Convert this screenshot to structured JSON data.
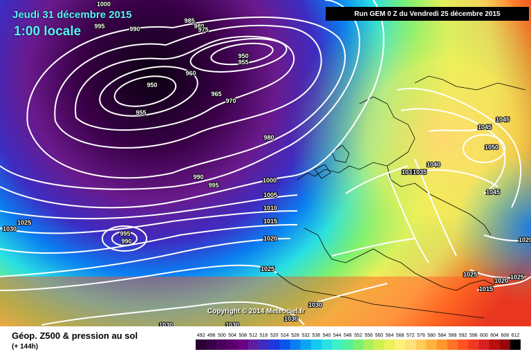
{
  "overlay": {
    "date": "Jeudi 31 décembre 2015",
    "time": "1:00 locale",
    "run": "Run GEM 0 Z du Vendredi 25 décembre 2015",
    "copyright": "Copyright © 2014 Meteociel.fr"
  },
  "footer": {
    "title": "Géop. Z500 & pression au sol",
    "subtitle": "(+ 144h)"
  },
  "legend": {
    "values": [
      "492",
      "496",
      "500",
      "504",
      "508",
      "512",
      "516",
      "520",
      "524",
      "528",
      "532",
      "536",
      "540",
      "544",
      "548",
      "552",
      "556",
      "560",
      "564",
      "568",
      "572",
      "576",
      "580",
      "584",
      "588",
      "592",
      "596",
      "600",
      "604",
      "608",
      "612"
    ],
    "colors": [
      "#2a0033",
      "#3a0048",
      "#4b005c",
      "#5a006e",
      "#6a0084",
      "#5d1fa0",
      "#3d2cc2",
      "#1d38dc",
      "#0a55ee",
      "#0a7ef2",
      "#0aa6f2",
      "#12c8ee",
      "#2ae0e2",
      "#3cf0c8",
      "#52f09c",
      "#7cf070",
      "#aaf05a",
      "#d0f052",
      "#eef05a",
      "#fff078",
      "#ffe07a",
      "#ffcc5a",
      "#ffb23c",
      "#ff962e",
      "#ff7426",
      "#ff5420",
      "#f03820",
      "#d82020",
      "#b81010",
      "#980808",
      "#000000"
    ]
  },
  "pressure_labels": [
    "1000",
    "995",
    "990",
    "985",
    "980",
    "975",
    "950",
    "955",
    "960",
    "950",
    "955",
    "965",
    "970",
    "980",
    "990",
    "995",
    "1000",
    "1005",
    "1010",
    "1015",
    "1020",
    "1025",
    "1030",
    "1025",
    "995",
    "990",
    "1030",
    "1030",
    "1030",
    "1030",
    "1035",
    "1040",
    "1035",
    "1045",
    "1045",
    "1050",
    "1045",
    "1025",
    "1020",
    "1015",
    "1025",
    "1020"
  ]
}
